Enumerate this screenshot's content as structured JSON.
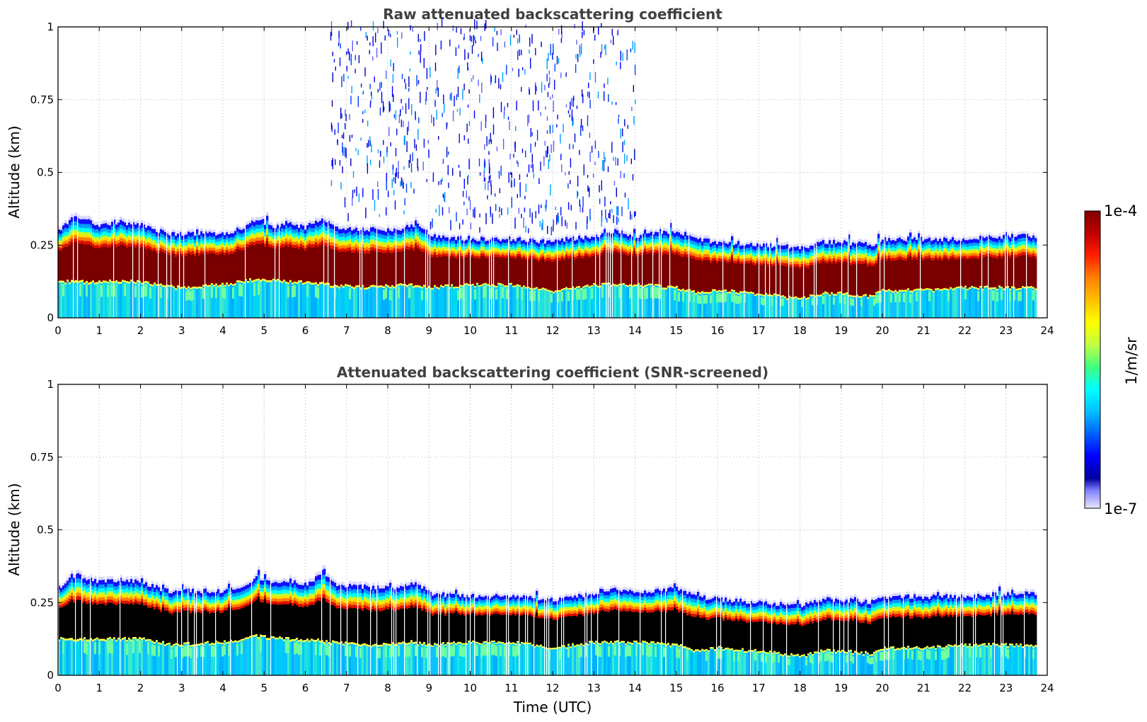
{
  "chart_data": [
    {
      "type": "heatmap",
      "id": "raw",
      "title": "Raw attenuated backscattering coefficient",
      "ylabel": "Altitude (km)",
      "xlabel": "",
      "xlim": [
        0,
        24
      ],
      "ylim": [
        0,
        1
      ],
      "xticks": [
        "0",
        "1",
        "2",
        "3",
        "4",
        "5",
        "6",
        "7",
        "8",
        "9",
        "10",
        "11",
        "12",
        "13",
        "14",
        "15",
        "16",
        "17",
        "18",
        "19",
        "20",
        "21",
        "22",
        "23",
        "24"
      ],
      "yticks": [
        "0",
        "0.25",
        "0.5",
        "0.75",
        "1"
      ],
      "grid": true,
      "layer_top_km": [
        [
          0,
          0.31
        ],
        [
          0.4,
          0.36
        ],
        [
          1,
          0.33
        ],
        [
          1.5,
          0.34
        ],
        [
          2,
          0.33
        ],
        [
          2.6,
          0.3
        ],
        [
          3,
          0.3
        ],
        [
          4,
          0.3
        ],
        [
          4.5,
          0.32
        ],
        [
          4.8,
          0.35
        ],
        [
          5.2,
          0.32
        ],
        [
          5.5,
          0.34
        ],
        [
          6,
          0.32
        ],
        [
          6.4,
          0.36
        ],
        [
          6.7,
          0.32
        ],
        [
          7,
          0.32
        ],
        [
          8,
          0.31
        ],
        [
          8.7,
          0.33
        ],
        [
          9,
          0.29
        ],
        [
          10,
          0.28
        ],
        [
          11,
          0.28
        ],
        [
          12,
          0.27
        ],
        [
          12.3,
          0.28
        ],
        [
          13,
          0.29
        ],
        [
          13.5,
          0.31
        ],
        [
          14,
          0.29
        ],
        [
          15,
          0.31
        ],
        [
          15.5,
          0.28
        ],
        [
          16,
          0.27
        ],
        [
          17,
          0.26
        ],
        [
          18,
          0.25
        ],
        [
          18.5,
          0.27
        ],
        [
          19,
          0.27
        ],
        [
          19.7,
          0.26
        ],
        [
          20,
          0.28
        ],
        [
          21,
          0.28
        ],
        [
          22,
          0.28
        ],
        [
          23,
          0.29
        ],
        [
          23.7,
          0.29
        ]
      ],
      "layer_base_km": [
        [
          0,
          0.12
        ],
        [
          1,
          0.12
        ],
        [
          2,
          0.12
        ],
        [
          2.8,
          0.1
        ],
        [
          4,
          0.11
        ],
        [
          4.8,
          0.13
        ],
        [
          5.5,
          0.12
        ],
        [
          6,
          0.12
        ],
        [
          6.5,
          0.11
        ],
        [
          7.5,
          0.1
        ],
        [
          8.5,
          0.11
        ],
        [
          9,
          0.1
        ],
        [
          10,
          0.11
        ],
        [
          11,
          0.11
        ],
        [
          12,
          0.09
        ],
        [
          12.5,
          0.1
        ],
        [
          13,
          0.11
        ],
        [
          14,
          0.11
        ],
        [
          15,
          0.1
        ],
        [
          15.5,
          0.08
        ],
        [
          16,
          0.09
        ],
        [
          17,
          0.08
        ],
        [
          18,
          0.06
        ],
        [
          18.5,
          0.08
        ],
        [
          19,
          0.08
        ],
        [
          19.7,
          0.07
        ],
        [
          20,
          0.09
        ],
        [
          21,
          0.09
        ],
        [
          22,
          0.1
        ],
        [
          23,
          0.1
        ],
        [
          23.7,
          0.1
        ]
      ],
      "core": "dark-red",
      "noise_window_utc": [
        6.6,
        14.0
      ]
    },
    {
      "type": "heatmap",
      "id": "snr",
      "title": "Attenuated backscattering coefficient (SNR-screened)",
      "ylabel": "Altitude (km)",
      "xlabel": "Time (UTC)",
      "xlim": [
        0,
        24
      ],
      "ylim": [
        0,
        1
      ],
      "xticks": [
        "0",
        "1",
        "2",
        "3",
        "4",
        "5",
        "6",
        "7",
        "8",
        "9",
        "10",
        "11",
        "12",
        "13",
        "14",
        "15",
        "16",
        "17",
        "18",
        "19",
        "20",
        "21",
        "22",
        "23",
        "24"
      ],
      "yticks": [
        "0",
        "0.25",
        "0.5",
        "0.75",
        "1"
      ],
      "grid": true,
      "core": "black",
      "noise_window_utc": null
    }
  ],
  "colorbar": {
    "label": "1/m/sr",
    "max_label": "1e-4",
    "min_label": "1e-7",
    "colormap": [
      "#0000a0",
      "#0000ff",
      "#0060ff",
      "#00c0ff",
      "#00ffff",
      "#40ff80",
      "#c0ff40",
      "#ffff00",
      "#ffc000",
      "#ff8000",
      "#ff2000",
      "#c00000",
      "#800000"
    ]
  }
}
